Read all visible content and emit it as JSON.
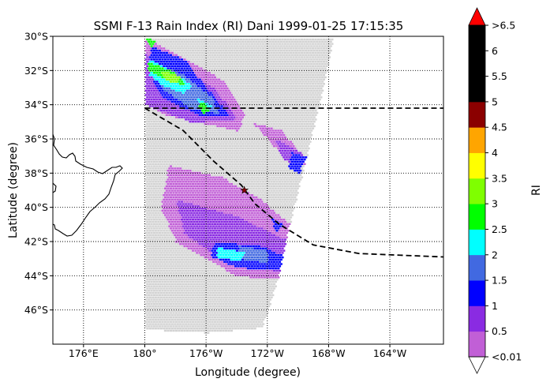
{
  "chart_data": {
    "type": "heatmap",
    "title": "SSMI F-13 Rain Index (RI) Dani 1999-01-25 17:15:35",
    "xlabel": "Longitude (degree)",
    "ylabel": "Latitude (degree)",
    "xlim": [
      174.0,
      199.5
    ],
    "ylim": [
      -48.0,
      -30.0
    ],
    "x_ticks": [
      {
        "value": 176,
        "label": "176°E"
      },
      {
        "value": 180,
        "label": "180°"
      },
      {
        "value": 184,
        "label": "176°W"
      },
      {
        "value": 188,
        "label": "172°W"
      },
      {
        "value": 192,
        "label": "168°W"
      },
      {
        "value": 196,
        "label": "164°W"
      }
    ],
    "y_ticks": [
      {
        "value": -30,
        "label": "30°S"
      },
      {
        "value": -32,
        "label": "32°S"
      },
      {
        "value": -34,
        "label": "34°S"
      },
      {
        "value": -36,
        "label": "36°S"
      },
      {
        "value": -38,
        "label": "38°S"
      },
      {
        "value": -40,
        "label": "40°S"
      },
      {
        "value": -42,
        "label": "42°S"
      },
      {
        "value": -44,
        "label": "44°S"
      },
      {
        "value": -46,
        "label": "46°S"
      }
    ],
    "grid": true,
    "grid_style": "dotted",
    "colorbar": {
      "label": "RI",
      "extend": "both",
      "under_color": "#ffffff",
      "over_color": "#ff0000",
      "colors": [
        "#c15fd6",
        "#8a2be2",
        "#0000ff",
        "#4169e1",
        "#00ffff",
        "#00ff00",
        "#7fff00",
        "#ffff00",
        "#ffa500",
        "#8b0000",
        "#000000",
        "#000000",
        "#000000"
      ],
      "tick_labels": [
        "<0.01",
        "0.5",
        "1",
        "1.5",
        "2",
        "2.5",
        "3",
        "3.5",
        "4",
        "4.5",
        "5",
        "5.5",
        "6",
        ">6.5"
      ]
    },
    "swath_color": "#d3d3d3",
    "swath_polygon_lonlat": [
      [
        180.0,
        -30.0
      ],
      [
        192.3,
        -30.0
      ],
      [
        191.6,
        -33.0
      ],
      [
        190.5,
        -37.0
      ],
      [
        189.4,
        -41.0
      ],
      [
        188.7,
        -44.0
      ],
      [
        187.6,
        -47.0
      ],
      [
        184.0,
        -47.3
      ],
      [
        180.0,
        -47.1
      ]
    ],
    "rain_regions": [
      {
        "class": 0,
        "points": [
          [
            180.0,
            -30.0
          ],
          [
            185.0,
            -32.5
          ],
          [
            186.5,
            -34.5
          ],
          [
            186.0,
            -35.5
          ],
          [
            181.0,
            -34.5
          ],
          [
            180.0,
            -33.5
          ]
        ]
      },
      {
        "class": 0,
        "points": [
          [
            187.0,
            -35.0
          ],
          [
            189.0,
            -35.5
          ],
          [
            190.5,
            -37.5
          ],
          [
            188.5,
            -36.5
          ]
        ]
      },
      {
        "class": 0,
        "points": [
          [
            181.5,
            -37.5
          ],
          [
            185.0,
            -38.2
          ],
          [
            187.5,
            -39.5
          ],
          [
            190.2,
            -41.5
          ],
          [
            189.5,
            -44.2
          ],
          [
            186.0,
            -44.0
          ],
          [
            182.0,
            -42.0
          ],
          [
            181.0,
            -40.0
          ]
        ]
      },
      {
        "class": 1,
        "points": [
          [
            180.0,
            -31.0
          ],
          [
            184.5,
            -33.0
          ],
          [
            186.0,
            -34.8
          ],
          [
            183.0,
            -35.0
          ],
          [
            180.0,
            -34.0
          ]
        ]
      },
      {
        "class": 1,
        "points": [
          [
            182.0,
            -39.5
          ],
          [
            186.0,
            -40.5
          ],
          [
            189.5,
            -42.0
          ],
          [
            189.0,
            -43.8
          ],
          [
            185.0,
            -43.0
          ],
          [
            182.5,
            -41.5
          ]
        ]
      },
      {
        "class": 1,
        "points": [
          [
            188.5,
            -36.0
          ],
          [
            190.3,
            -36.8
          ],
          [
            190.0,
            -37.8
          ],
          [
            188.8,
            -37.0
          ]
        ]
      },
      {
        "class": 2,
        "points": [
          [
            180.3,
            -30.5
          ],
          [
            182.5,
            -31.3
          ],
          [
            184.0,
            -33.0
          ],
          [
            185.5,
            -34.6
          ],
          [
            183.5,
            -34.6
          ],
          [
            181.0,
            -33.5
          ],
          [
            180.2,
            -32.0
          ]
        ]
      },
      {
        "class": 2,
        "points": [
          [
            184.5,
            -42.0
          ],
          [
            187.5,
            -42.2
          ],
          [
            189.5,
            -43.0
          ],
          [
            189.0,
            -43.6
          ],
          [
            186.0,
            -43.5
          ],
          [
            184.2,
            -42.8
          ]
        ]
      },
      {
        "class": 2,
        "points": [
          [
            188.2,
            -40.5
          ],
          [
            189.0,
            -41.0
          ],
          [
            188.5,
            -41.5
          ]
        ]
      },
      {
        "class": 2,
        "points": [
          [
            189.5,
            -36.7
          ],
          [
            190.5,
            -37.0
          ],
          [
            190.0,
            -38.0
          ],
          [
            189.3,
            -37.6
          ]
        ]
      },
      {
        "class": 3,
        "points": [
          [
            180.5,
            -31.5
          ],
          [
            182.5,
            -32.2
          ],
          [
            184.3,
            -33.5
          ],
          [
            184.8,
            -34.5
          ],
          [
            183.0,
            -34.2
          ],
          [
            181.0,
            -33.0
          ]
        ]
      },
      {
        "class": 3,
        "points": [
          [
            186.0,
            -42.2
          ],
          [
            188.0,
            -42.5
          ],
          [
            188.0,
            -43.2
          ],
          [
            186.3,
            -43.0
          ]
        ]
      },
      {
        "class": 4,
        "points": [
          [
            180.2,
            -31.3
          ],
          [
            181.5,
            -31.9
          ],
          [
            183.0,
            -32.8
          ],
          [
            182.5,
            -33.3
          ],
          [
            181.0,
            -32.8
          ],
          [
            180.2,
            -32.2
          ]
        ]
      },
      {
        "class": 4,
        "points": [
          [
            184.7,
            -42.3
          ],
          [
            186.5,
            -42.6
          ],
          [
            186.2,
            -43.1
          ],
          [
            184.6,
            -42.9
          ]
        ]
      },
      {
        "class": 4,
        "points": [
          [
            183.4,
            -33.6
          ],
          [
            184.3,
            -34.0
          ],
          [
            183.8,
            -34.4
          ]
        ]
      },
      {
        "class": 5,
        "points": [
          [
            180.0,
            -31.4
          ],
          [
            181.8,
            -32.0
          ],
          [
            182.6,
            -32.8
          ],
          [
            181.6,
            -32.6
          ],
          [
            180.2,
            -32.0
          ]
        ]
      },
      {
        "class": 5,
        "points": [
          [
            183.6,
            -33.7
          ],
          [
            184.2,
            -34.3
          ],
          [
            183.7,
            -34.5
          ],
          [
            183.4,
            -34.0
          ]
        ]
      },
      {
        "class": 5,
        "points": [
          [
            180.0,
            -30.0
          ],
          [
            180.6,
            -30.2
          ],
          [
            180.3,
            -30.7
          ]
        ]
      },
      {
        "class": 6,
        "points": [
          [
            181.0,
            -31.9
          ],
          [
            182.2,
            -32.3
          ],
          [
            182.0,
            -32.7
          ],
          [
            181.2,
            -32.5
          ]
        ]
      }
    ],
    "storm_track_lonlat": [
      [
        180.0,
        -34.2
      ],
      [
        182.5,
        -35.5
      ],
      [
        184.5,
        -37.3
      ],
      [
        186.3,
        -38.7
      ],
      [
        187.2,
        -39.8
      ],
      [
        188.8,
        -41.0
      ],
      [
        191.0,
        -42.2
      ],
      [
        194.0,
        -42.7
      ],
      [
        199.5,
        -42.9
      ]
    ],
    "storm_center_lonlat": [
      186.5,
      -39.0
    ],
    "storm_center_color": "#8b0000",
    "boundary_line_lat": -34.2,
    "boundary_line_lon_start": 180.0
  }
}
